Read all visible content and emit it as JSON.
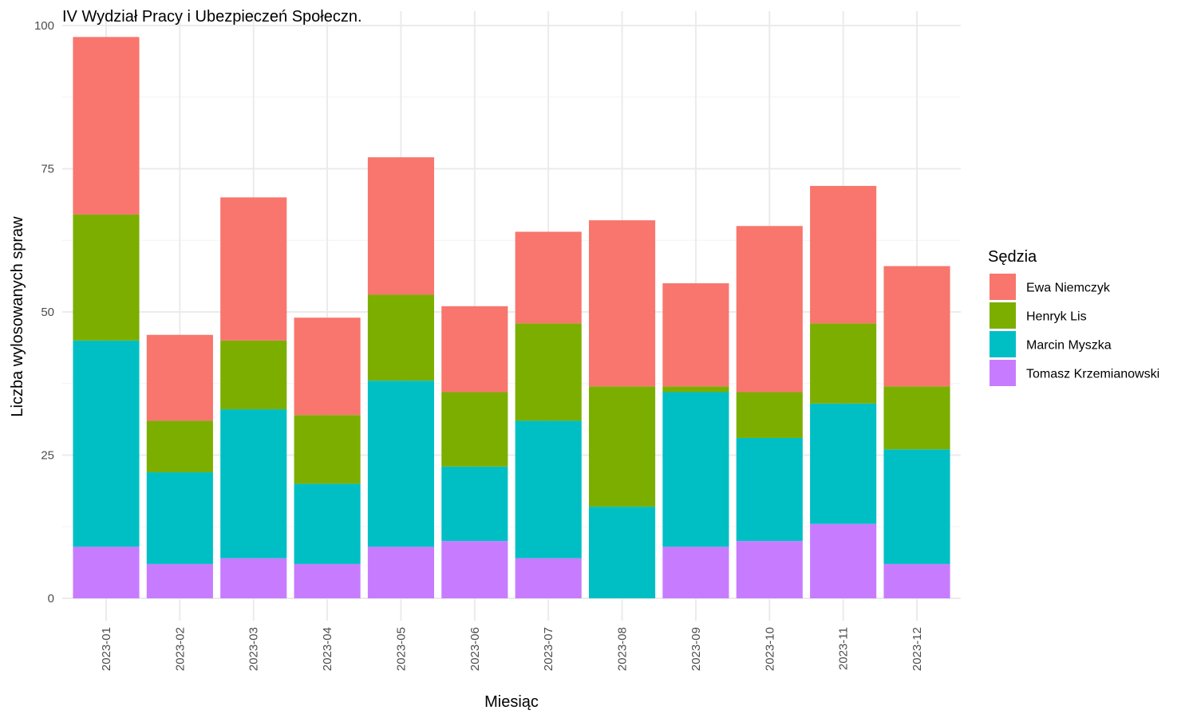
{
  "chart_data": {
    "type": "bar",
    "stacked": true,
    "title": "IV Wydział Pracy i Ubezpieczeń Społeczn.",
    "xlabel": "Miesiąc",
    "ylabel": "Liczba wylosowanych spraw",
    "ylim": [
      0,
      100
    ],
    "yticks": [
      0,
      25,
      50,
      75,
      100
    ],
    "grid": true,
    "legend": {
      "title": "Sędzia",
      "placement": "right"
    },
    "categories": [
      "2023-01",
      "2023-02",
      "2023-03",
      "2023-04",
      "2023-05",
      "2023-06",
      "2023-07",
      "2023-08",
      "2023-09",
      "2023-10",
      "2023-11",
      "2023-12"
    ],
    "series": [
      {
        "name": "Ewa Niemczyk",
        "color": "#F8766D",
        "values": [
          31,
          15,
          25,
          17,
          24,
          15,
          16,
          29,
          18,
          29,
          24,
          21
        ]
      },
      {
        "name": "Henryk Lis",
        "color": "#7CAE00",
        "values": [
          22,
          9,
          12,
          12,
          15,
          13,
          17,
          21,
          1,
          8,
          14,
          11
        ]
      },
      {
        "name": "Marcin Myszka",
        "color": "#00BFC4",
        "values": [
          36,
          16,
          26,
          14,
          29,
          13,
          24,
          16,
          27,
          18,
          21,
          20
        ]
      },
      {
        "name": "Tomasz Krzemianowski",
        "color": "#C77CFF",
        "values": [
          9,
          6,
          7,
          6,
          9,
          10,
          7,
          0,
          9,
          10,
          13,
          6
        ]
      }
    ]
  }
}
